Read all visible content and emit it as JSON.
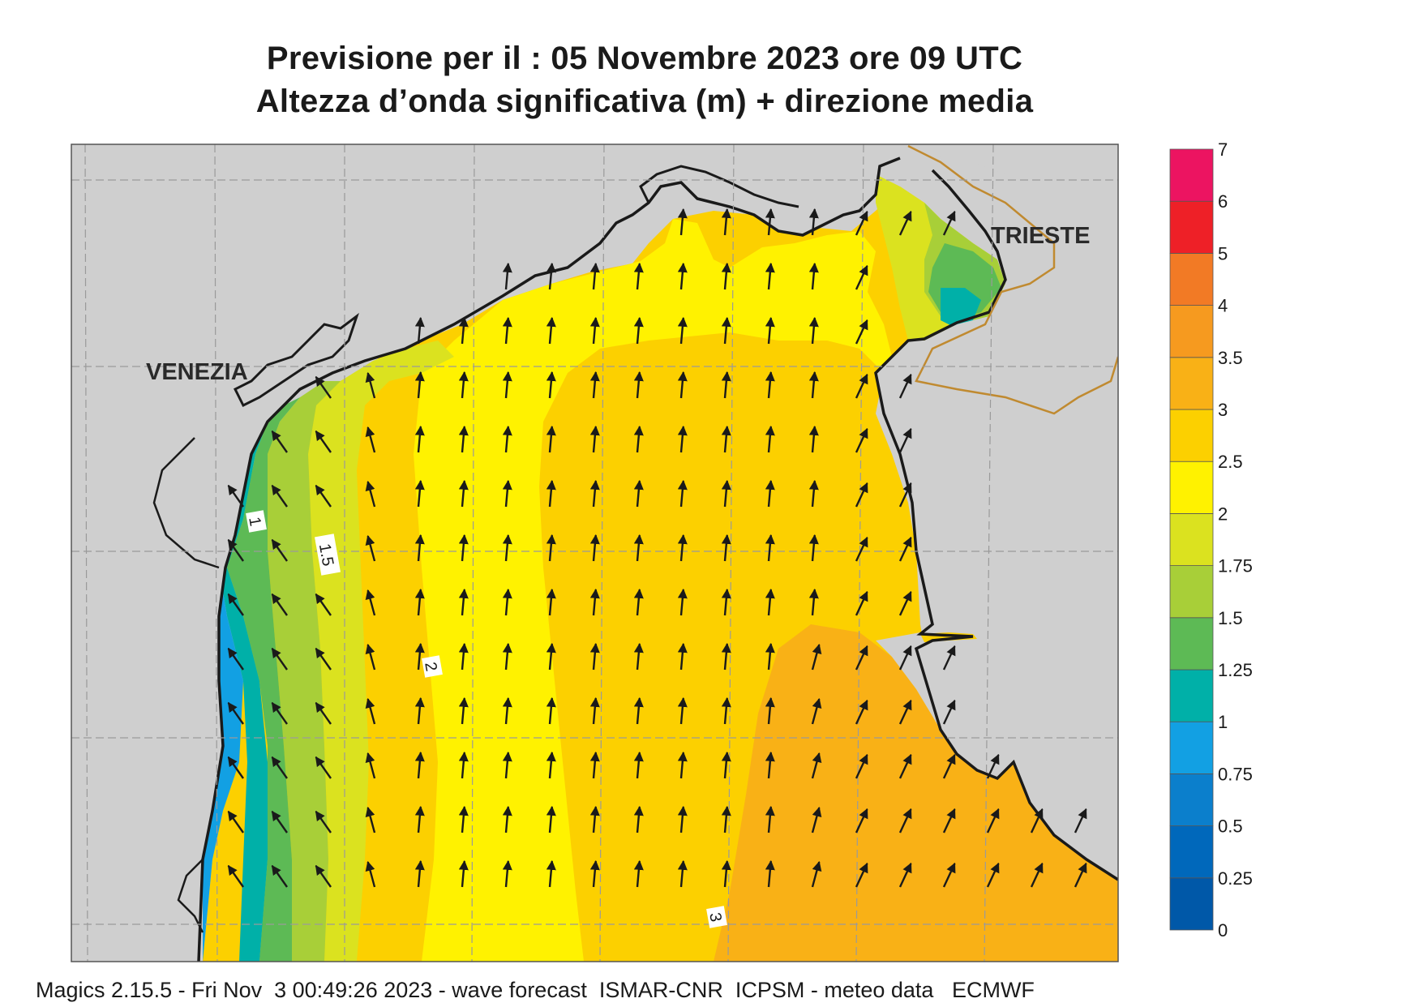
{
  "title_line1": "Previsione per il  :  05 Novembre  2023   ore 09 UTC",
  "title_line2": "Altezza d’onda significativa (m) + direzione media",
  "footer": "Magics 2.15.5 - Fri Nov  3 00:49:26 2023 - wave forecast  ISMAR-CNR  ICPSM - meteo data   ECMWF",
  "places": {
    "venezia": "VENEZIA",
    "trieste": "TRIESTE"
  },
  "contour_labels": {
    "c1": "1",
    "c15": "1.5",
    "c2": "2",
    "c3": "3"
  },
  "colors": {
    "land": "#cfcfcf",
    "coast": "#1a1a1a",
    "border": "#c08a30",
    "arrow": "#1a1a1a"
  },
  "legend": {
    "bins": [
      {
        "from": "0",
        "to": "0.25",
        "color": "#0058a8"
      },
      {
        "from": "0.25",
        "to": "0.5",
        "color": "#0068bb"
      },
      {
        "from": "0.5",
        "to": "0.75",
        "color": "#0b7fcc"
      },
      {
        "from": "0.75",
        "to": "1",
        "color": "#12a0e3"
      },
      {
        "from": "1",
        "to": "1.25",
        "color": "#00b0a8"
      },
      {
        "from": "1.25",
        "to": "1.5",
        "color": "#5dba55"
      },
      {
        "from": "1.5",
        "to": "1.75",
        "color": "#a8cf38"
      },
      {
        "from": "1.75",
        "to": "2",
        "color": "#dbe21f"
      },
      {
        "from": "2",
        "to": "2.5",
        "color": "#fff200"
      },
      {
        "from": "2.5",
        "to": "3",
        "color": "#fcd000"
      },
      {
        "from": "3",
        "to": "3.5",
        "color": "#f9b116"
      },
      {
        "from": "3.5",
        "to": "4",
        "color": "#f69a1f"
      },
      {
        "from": "4",
        "to": "5",
        "color": "#f27a25"
      },
      {
        "from": "5",
        "to": "6",
        "color": "#ee2027"
      },
      {
        "from": "6",
        "to": "7",
        "color": "#ec1461"
      }
    ],
    "ticks": [
      "0",
      "0.25",
      "0.5",
      "0.75",
      "1",
      "1.25",
      "1.5",
      "1.75",
      "2",
      "2.5",
      "3",
      "3.5",
      "4",
      "5",
      "6",
      "7"
    ]
  }
}
